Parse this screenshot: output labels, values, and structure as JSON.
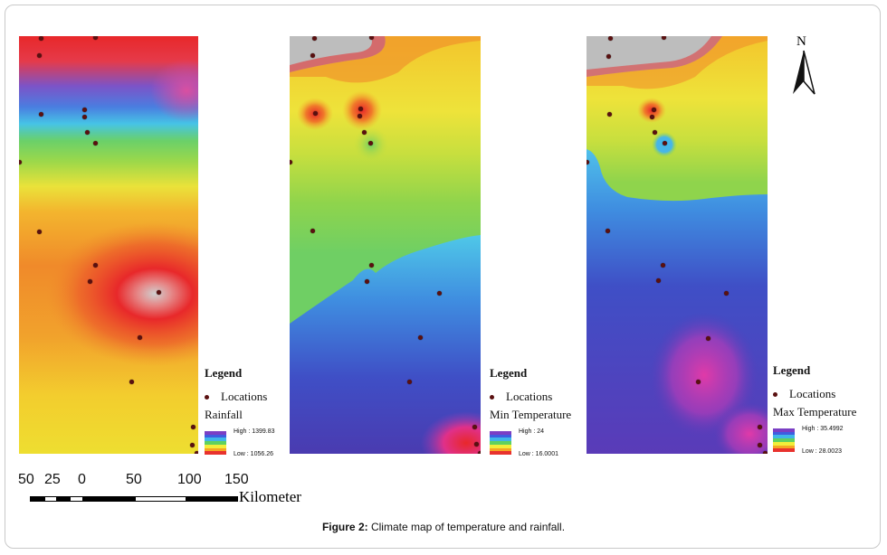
{
  "maps": [
    {
      "id": "rainfall",
      "legend": {
        "title": "Legend",
        "locations_label": "Locations",
        "variable": "Rainfall",
        "high": "High : 1399.83",
        "low": "Low : 1056.26"
      }
    },
    {
      "id": "min-temperature",
      "legend": {
        "title": "Legend",
        "locations_label": "Locations",
        "variable": "Min Temperature",
        "high": "High : 24",
        "low": "Low : 16.0001"
      }
    },
    {
      "id": "max-temperature",
      "legend": {
        "title": "Legend",
        "locations_label": "Locations",
        "variable": "Max Temperature",
        "high": "High : 35.4992",
        "low": "Low : 28.0023"
      }
    }
  ],
  "north_arrow": {
    "label": "N"
  },
  "scale_bar": {
    "ticks": [
      "50",
      "25",
      "0",
      "50",
      "100",
      "150"
    ],
    "unit": "Kilometer"
  },
  "legend_ramp_colors": [
    "#7b3fc4",
    "#3f5de0",
    "#3fb6e8",
    "#5fd15f",
    "#f2ee3a",
    "#f5a623",
    "#e8322e"
  ],
  "location_color": "#5a1010",
  "caption": {
    "label": "Figure 2:",
    "text": " Climate map of temperature and rainfall."
  }
}
